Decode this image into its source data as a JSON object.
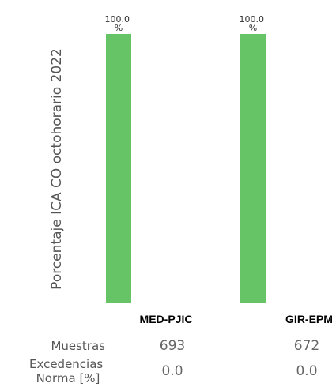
{
  "chart_data": {
    "type": "bar",
    "ylabel": "Porcentaje ICA CO octohorario 2022",
    "categories": [
      "MED-PJIC",
      "GIR-EPM"
    ],
    "values": [
      100.0,
      100.0
    ],
    "value_labels": [
      [
        "100.0",
        "%"
      ],
      [
        "100.0",
        "%"
      ]
    ],
    "ylim": [
      0,
      100
    ],
    "bar_color": "#67c466"
  },
  "table": {
    "rows": [
      {
        "label_lines": [
          "Muestras"
        ],
        "values": [
          "693",
          "672"
        ]
      },
      {
        "label_lines": [
          "Excedencias",
          "Norma [%]"
        ],
        "values": [
          "0.0",
          "0.0"
        ]
      }
    ]
  }
}
